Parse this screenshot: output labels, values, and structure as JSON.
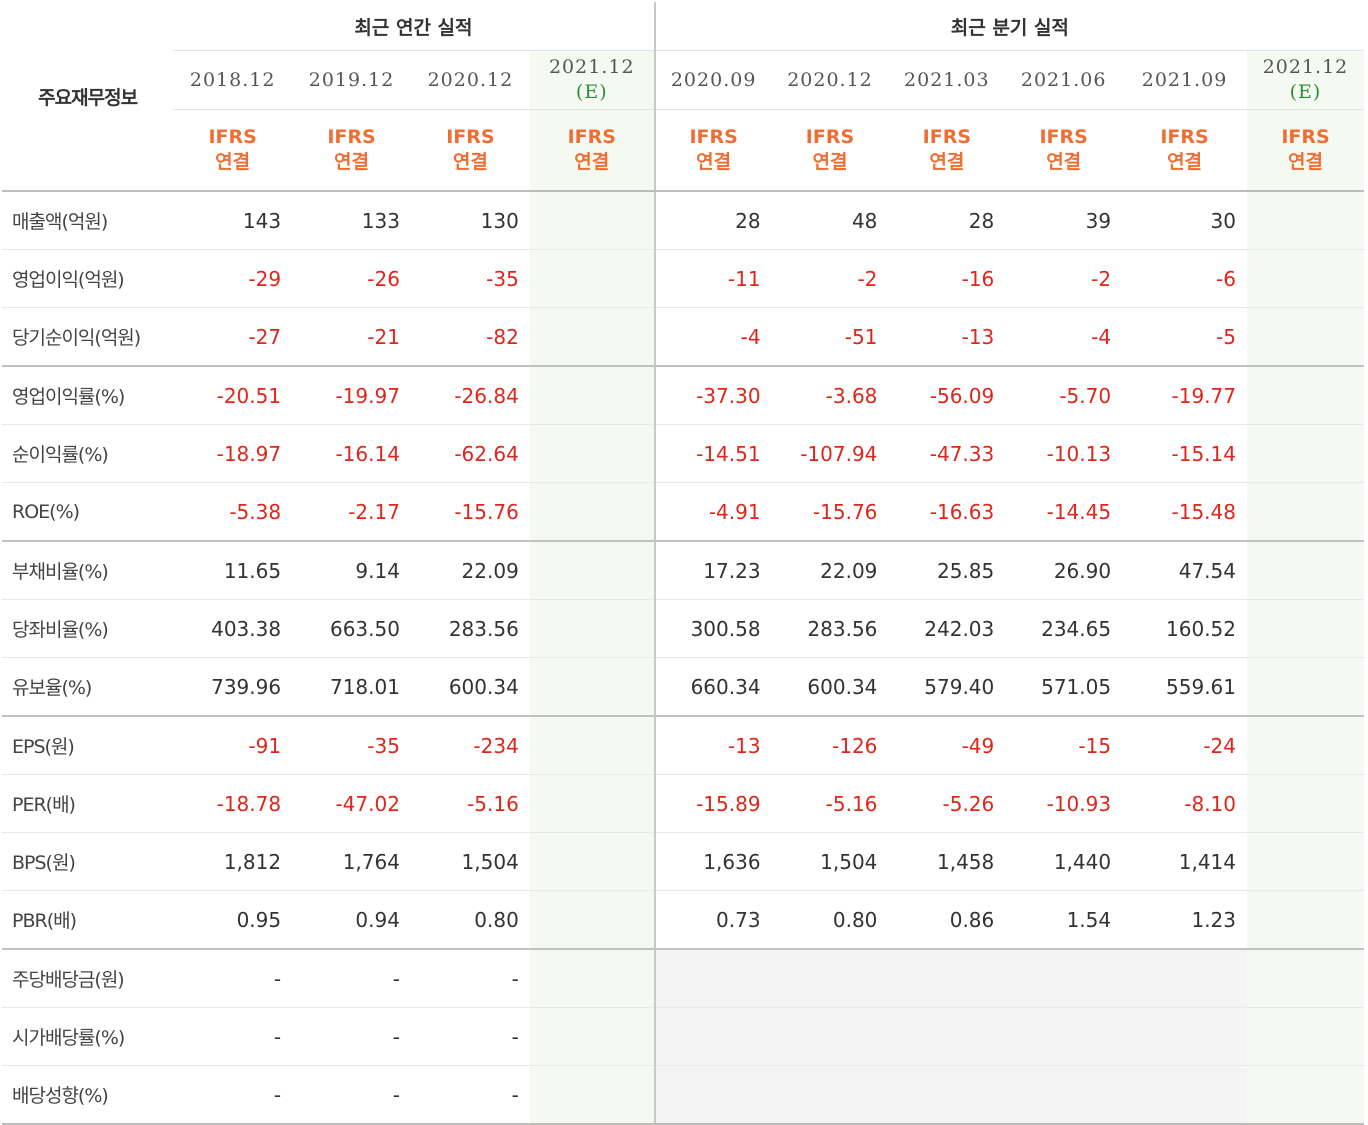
{
  "table": {
    "main_label": "주요재무정보",
    "annual_title": "최근 연간 실적",
    "quarter_title": "최근 분기 실적",
    "columns": [
      {
        "date": "2018.12",
        "est": "",
        "ifrs1": "IFRS",
        "ifrs2": "연결"
      },
      {
        "date": "2019.12",
        "est": "",
        "ifrs1": "IFRS",
        "ifrs2": "연결"
      },
      {
        "date": "2020.12",
        "est": "",
        "ifrs1": "IFRS",
        "ifrs2": "연결"
      },
      {
        "date": "2021.12",
        "est": "(E)",
        "ifrs1": "IFRS",
        "ifrs2": "연결"
      },
      {
        "date": "2020.09",
        "est": "",
        "ifrs1": "IFRS",
        "ifrs2": "연결"
      },
      {
        "date": "2020.12",
        "est": "",
        "ifrs1": "IFRS",
        "ifrs2": "연결"
      },
      {
        "date": "2021.03",
        "est": "",
        "ifrs1": "IFRS",
        "ifrs2": "연결"
      },
      {
        "date": "2021.06",
        "est": "",
        "ifrs1": "IFRS",
        "ifrs2": "연결"
      },
      {
        "date": "2021.09",
        "est": "",
        "ifrs1": "IFRS",
        "ifrs2": "연결"
      },
      {
        "date": "2021.12",
        "est": "(E)",
        "ifrs1": "IFRS",
        "ifrs2": "연결"
      }
    ],
    "rows": [
      {
        "label": "매출액(억원)",
        "values": [
          "143",
          "133",
          "130",
          "",
          "28",
          "48",
          "28",
          "39",
          "30",
          ""
        ]
      },
      {
        "label": "영업이익(억원)",
        "values": [
          "-29",
          "-26",
          "-35",
          "",
          "-11",
          "-2",
          "-16",
          "-2",
          "-6",
          ""
        ]
      },
      {
        "label": "당기순이익(억원)",
        "values": [
          "-27",
          "-21",
          "-82",
          "",
          "-4",
          "-51",
          "-13",
          "-4",
          "-5",
          ""
        ]
      },
      {
        "label": "영업이익률(%)",
        "values": [
          "-20.51",
          "-19.97",
          "-26.84",
          "",
          "-37.30",
          "-3.68",
          "-56.09",
          "-5.70",
          "-19.77",
          ""
        ]
      },
      {
        "label": "순이익률(%)",
        "values": [
          "-18.97",
          "-16.14",
          "-62.64",
          "",
          "-14.51",
          "-107.94",
          "-47.33",
          "-10.13",
          "-15.14",
          ""
        ]
      },
      {
        "label": "ROE(%)",
        "values": [
          "-5.38",
          "-2.17",
          "-15.76",
          "",
          "-4.91",
          "-15.76",
          "-16.63",
          "-14.45",
          "-15.48",
          ""
        ]
      },
      {
        "label": "부채비율(%)",
        "values": [
          "11.65",
          "9.14",
          "22.09",
          "",
          "17.23",
          "22.09",
          "25.85",
          "26.90",
          "47.54",
          ""
        ]
      },
      {
        "label": "당좌비율(%)",
        "values": [
          "403.38",
          "663.50",
          "283.56",
          "",
          "300.58",
          "283.56",
          "242.03",
          "234.65",
          "160.52",
          ""
        ]
      },
      {
        "label": "유보율(%)",
        "values": [
          "739.96",
          "718.01",
          "600.34",
          "",
          "660.34",
          "600.34",
          "579.40",
          "571.05",
          "559.61",
          ""
        ]
      },
      {
        "label": "EPS(원)",
        "values": [
          "-91",
          "-35",
          "-234",
          "",
          "-13",
          "-126",
          "-49",
          "-15",
          "-24",
          ""
        ]
      },
      {
        "label": "PER(배)",
        "values": [
          "-18.78",
          "-47.02",
          "-5.16",
          "",
          "-15.89",
          "-5.16",
          "-5.26",
          "-10.93",
          "-8.10",
          ""
        ]
      },
      {
        "label": "BPS(원)",
        "values": [
          "1,812",
          "1,764",
          "1,504",
          "",
          "1,636",
          "1,504",
          "1,458",
          "1,440",
          "1,414",
          ""
        ]
      },
      {
        "label": "PBR(배)",
        "values": [
          "0.95",
          "0.94",
          "0.80",
          "",
          "0.73",
          "0.80",
          "0.86",
          "1.54",
          "1.23",
          ""
        ]
      },
      {
        "label": "주당배당금(원)",
        "values": [
          "-",
          "-",
          "-",
          "",
          "",
          "",
          "",
          "",
          "",
          ""
        ]
      },
      {
        "label": "시가배당률(%)",
        "values": [
          "-",
          "-",
          "-",
          "",
          "",
          "",
          "",
          "",
          "",
          ""
        ]
      },
      {
        "label": "배당성향(%)",
        "values": [
          "-",
          "-",
          "-",
          "",
          "",
          "",
          "",
          "",
          "",
          ""
        ]
      }
    ]
  },
  "colors": {
    "negative": "#e0251b",
    "ifrs": "#ef6e33",
    "estimate": "#2e8b3a",
    "estimate_bg": "#f4faf1",
    "empty_bg": "#f4f4f4"
  }
}
